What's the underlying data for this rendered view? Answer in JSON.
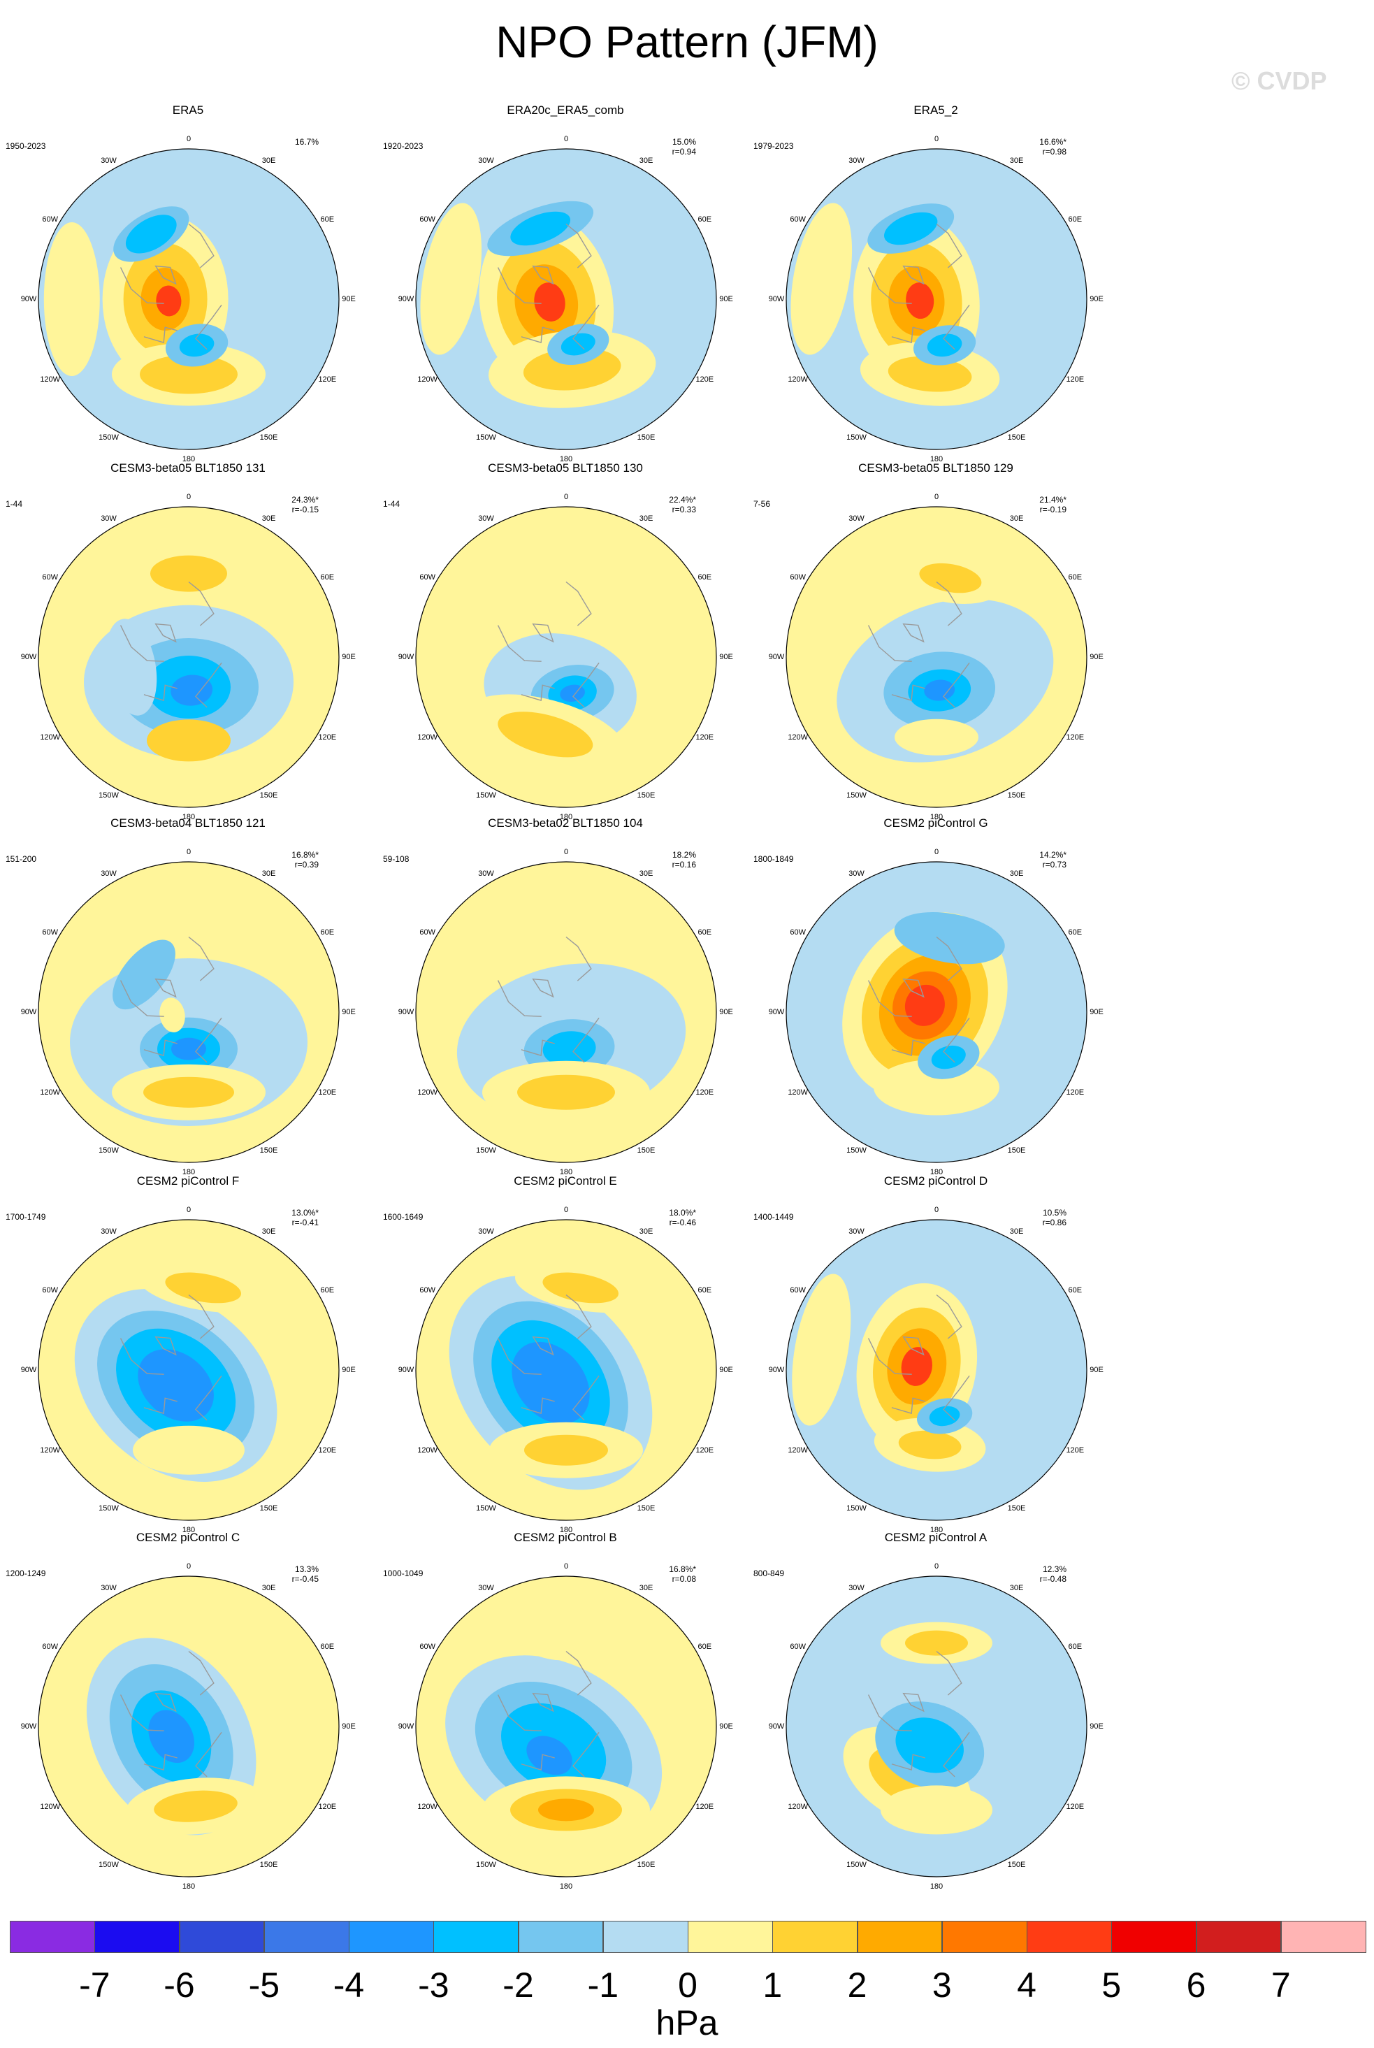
{
  "title": "NPO Pattern (JFM)",
  "watermark": "© CVDP",
  "lon_labels": [
    "180",
    "150E",
    "120E",
    "90E",
    "60E",
    "30E",
    "0",
    "30W",
    "60W",
    "90W",
    "120W",
    "150W"
  ],
  "palette": {
    "-7": "#8a2be2",
    "-6": "#1b0cf0",
    "-5": "#2f4ad9",
    "-4": "#3b78e8",
    "-3": "#1e96ff",
    "-2": "#00c0ff",
    "-1": "#75c6ef",
    "0": "#b4dcf2",
    "1": "#fff59a",
    "2": "#ffd233",
    "3": "#ffaa00",
    "4": "#ff7800",
    "5": "#ff3c14",
    "6": "#f00000",
    "7": "#d21e1e",
    "8": "#ffb4b4",
    "land": "#9a9a9a"
  },
  "panels": [
    {
      "name": "ERA5",
      "years": "1950-2023",
      "pct": "16.7%",
      "r": "",
      "bg": "#b4dcf2",
      "blobs": [
        {
          "lat": 76,
          "lon": -90,
          "rx": 120,
          "ry": 90,
          "lvl": 1
        },
        {
          "lat": 76,
          "lon": -90,
          "rx": 80,
          "ry": 60,
          "lvl": 2
        },
        {
          "lat": 76,
          "lon": -90,
          "rx": 45,
          "ry": 35,
          "lvl": 3
        },
        {
          "lat": 78,
          "lon": -95,
          "rx": 22,
          "ry": 18,
          "lvl": 5
        },
        {
          "lat": 45,
          "lon": 180,
          "rx": 110,
          "ry": 45,
          "lvl": 1
        },
        {
          "lat": 45,
          "lon": 180,
          "rx": 70,
          "ry": 28,
          "lvl": 2
        },
        {
          "lat": 62,
          "lon": 170,
          "rx": 45,
          "ry": 30,
          "lvl": -1
        },
        {
          "lat": 62,
          "lon": 170,
          "rx": 25,
          "ry": 16,
          "lvl": -2
        },
        {
          "lat": 45,
          "lon": -30,
          "rx": 60,
          "ry": 30,
          "lvl": -1
        },
        {
          "lat": 45,
          "lon": -30,
          "rx": 40,
          "ry": 22,
          "lvl": -2
        },
        {
          "lat": 20,
          "lon": -90,
          "rx": 110,
          "ry": 40,
          "lvl": 1
        }
      ]
    },
    {
      "name": "ERA20c_ERA5_comb",
      "years": "1920-2023",
      "pct": "15.0%",
      "r": "r=0.94",
      "bg": "#b4dcf2",
      "blobs": [
        {
          "lat": 78,
          "lon": -100,
          "rx": 130,
          "ry": 95,
          "lvl": 1
        },
        {
          "lat": 78,
          "lon": -100,
          "rx": 90,
          "ry": 70,
          "lvl": 2
        },
        {
          "lat": 78,
          "lon": -100,
          "rx": 55,
          "ry": 45,
          "lvl": 3
        },
        {
          "lat": 80,
          "lon": -100,
          "rx": 28,
          "ry": 22,
          "lvl": 5
        },
        {
          "lat": 48,
          "lon": 175,
          "rx": 120,
          "ry": 55,
          "lvl": 1
        },
        {
          "lat": 48,
          "lon": 175,
          "rx": 70,
          "ry": 30,
          "lvl": 2
        },
        {
          "lat": 62,
          "lon": 165,
          "rx": 45,
          "ry": 28,
          "lvl": -1
        },
        {
          "lat": 62,
          "lon": 165,
          "rx": 25,
          "ry": 15,
          "lvl": -2
        },
        {
          "lat": 45,
          "lon": -20,
          "rx": 80,
          "ry": 30,
          "lvl": -1
        },
        {
          "lat": 45,
          "lon": -20,
          "rx": 45,
          "ry": 20,
          "lvl": -2
        },
        {
          "lat": 20,
          "lon": -80,
          "rx": 110,
          "ry": 40,
          "lvl": 1
        }
      ]
    },
    {
      "name": "ERA5_2",
      "years": "1979-2023",
      "pct": "16.6%*",
      "r": "r=0.98",
      "bg": "#b4dcf2",
      "blobs": [
        {
          "lat": 78,
          "lon": -95,
          "rx": 125,
          "ry": 90,
          "lvl": 1
        },
        {
          "lat": 78,
          "lon": -95,
          "rx": 85,
          "ry": 65,
          "lvl": 2
        },
        {
          "lat": 78,
          "lon": -95,
          "rx": 50,
          "ry": 40,
          "lvl": 3
        },
        {
          "lat": 80,
          "lon": -95,
          "rx": 26,
          "ry": 20,
          "lvl": 5
        },
        {
          "lat": 45,
          "lon": -175,
          "rx": 100,
          "ry": 45,
          "lvl": 1
        },
        {
          "lat": 45,
          "lon": -175,
          "rx": 60,
          "ry": 25,
          "lvl": 2
        },
        {
          "lat": 62,
          "lon": 170,
          "rx": 45,
          "ry": 28,
          "lvl": -1
        },
        {
          "lat": 62,
          "lon": 170,
          "rx": 25,
          "ry": 16,
          "lvl": -2
        },
        {
          "lat": 45,
          "lon": -20,
          "rx": 65,
          "ry": 30,
          "lvl": -1
        },
        {
          "lat": 45,
          "lon": -20,
          "rx": 40,
          "ry": 20,
          "lvl": -2
        },
        {
          "lat": 20,
          "lon": -80,
          "rx": 110,
          "ry": 40,
          "lvl": 1
        }
      ]
    },
    {
      "name": "CESM3-beta05 BLT1850 131",
      "years": "1-44",
      "pct": "24.3%*",
      "r": "r=-0.15",
      "bg": "#fff59a",
      "blobs": [
        {
          "lat": 75,
          "lon": 180,
          "rx": 150,
          "ry": 110,
          "lvl": 0
        },
        {
          "lat": 72,
          "lon": 180,
          "rx": 100,
          "ry": 70,
          "lvl": -1
        },
        {
          "lat": 72,
          "lon": 180,
          "rx": 60,
          "ry": 45,
          "lvl": -2
        },
        {
          "lat": 70,
          "lon": 175,
          "rx": 30,
          "ry": 22,
          "lvl": -3
        },
        {
          "lat": 40,
          "lon": 180,
          "rx": 60,
          "ry": 30,
          "lvl": 2
        },
        {
          "lat": 40,
          "lon": 0,
          "rx": 90,
          "ry": 40,
          "lvl": 1
        },
        {
          "lat": 40,
          "lon": 0,
          "rx": 55,
          "ry": 26,
          "lvl": 2
        },
        {
          "lat": 55,
          "lon": -100,
          "rx": 70,
          "ry": 35,
          "lvl": 0
        }
      ]
    },
    {
      "name": "CESM3-beta05 BLT1850 130",
      "years": "1-44",
      "pct": "22.4%*",
      "r": "r=0.33",
      "bg": "#fff59a",
      "blobs": [
        {
          "lat": 70,
          "lon": -170,
          "rx": 110,
          "ry": 80,
          "lvl": 0
        },
        {
          "lat": 68,
          "lon": 170,
          "rx": 60,
          "ry": 40,
          "lvl": -1
        },
        {
          "lat": 68,
          "lon": 170,
          "rx": 35,
          "ry": 25,
          "lvl": -2
        },
        {
          "lat": 68,
          "lon": 170,
          "rx": 18,
          "ry": 12,
          "lvl": -3
        },
        {
          "lat": 42,
          "lon": -165,
          "rx": 120,
          "ry": 50,
          "lvl": 1
        },
        {
          "lat": 42,
          "lon": -165,
          "rx": 70,
          "ry": 28,
          "lvl": 2
        },
        {
          "lat": 40,
          "lon": 20,
          "rx": 60,
          "ry": 25,
          "lvl": 1
        }
      ]
    },
    {
      "name": "CESM3-beta05 BLT1850 129",
      "years": "7-56",
      "pct": "21.4%*",
      "r": "r=-0.19",
      "bg": "#fff59a",
      "blobs": [
        {
          "lat": 75,
          "lon": 160,
          "rx": 160,
          "ry": 110,
          "lvl": 0
        },
        {
          "lat": 70,
          "lon": 175,
          "rx": 80,
          "ry": 55,
          "lvl": -1
        },
        {
          "lat": 70,
          "lon": 175,
          "rx": 45,
          "ry": 30,
          "lvl": -2
        },
        {
          "lat": 70,
          "lon": 175,
          "rx": 22,
          "ry": 15,
          "lvl": -3
        },
        {
          "lat": 42,
          "lon": 180,
          "rx": 60,
          "ry": 26,
          "lvl": 1
        },
        {
          "lat": 42,
          "lon": 10,
          "rx": 75,
          "ry": 35,
          "lvl": 1
        },
        {
          "lat": 42,
          "lon": 10,
          "rx": 45,
          "ry": 20,
          "lvl": 2
        }
      ]
    },
    {
      "name": "CESM3-beta04 BLT1850 121",
      "years": "151-200",
      "pct": "16.8%*",
      "r": "r=0.39",
      "bg": "#fff59a",
      "blobs": [
        {
          "lat": 72,
          "lon": 180,
          "rx": 170,
          "ry": 120,
          "lvl": 0
        },
        {
          "lat": 68,
          "lon": 180,
          "rx": 70,
          "ry": 45,
          "lvl": -1
        },
        {
          "lat": 68,
          "lon": 180,
          "rx": 45,
          "ry": 30,
          "lvl": -2
        },
        {
          "lat": 68,
          "lon": 180,
          "rx": 25,
          "ry": 16,
          "lvl": -3
        },
        {
          "lat": 42,
          "lon": 180,
          "rx": 110,
          "ry": 40,
          "lvl": 1
        },
        {
          "lat": 42,
          "lon": 180,
          "rx": 65,
          "ry": 22,
          "lvl": 2
        },
        {
          "lat": 80,
          "lon": -100,
          "rx": 25,
          "ry": 18,
          "lvl": 1
        },
        {
          "lat": 55,
          "lon": -50,
          "rx": 60,
          "ry": 30,
          "lvl": -1
        }
      ]
    },
    {
      "name": "CESM3-beta02 BLT1850 104",
      "years": "59-108",
      "pct": "18.2%",
      "r": "r=0.16",
      "bg": "#fff59a",
      "blobs": [
        {
          "lat": 72,
          "lon": 170,
          "rx": 165,
          "ry": 110,
          "lvl": 0
        },
        {
          "lat": 68,
          "lon": 175,
          "rx": 65,
          "ry": 42,
          "lvl": -1
        },
        {
          "lat": 68,
          "lon": 175,
          "rx": 38,
          "ry": 25,
          "lvl": -2
        },
        {
          "lat": 42,
          "lon": 180,
          "rx": 120,
          "ry": 45,
          "lvl": 1
        },
        {
          "lat": 42,
          "lon": 180,
          "rx": 70,
          "ry": 25,
          "lvl": 2
        }
      ]
    },
    {
      "name": "CESM2 piControl G",
      "years": "1800-1849",
      "pct": "14.2%*",
      "r": "r=0.73",
      "bg": "#b4dcf2",
      "blobs": [
        {
          "lat": 82,
          "lon": -60,
          "rx": 140,
          "ry": 110,
          "lvl": 1
        },
        {
          "lat": 82,
          "lon": -60,
          "rx": 105,
          "ry": 85,
          "lvl": 2
        },
        {
          "lat": 82,
          "lon": -60,
          "rx": 75,
          "ry": 62,
          "lvl": 3
        },
        {
          "lat": 82,
          "lon": -60,
          "rx": 50,
          "ry": 45,
          "lvl": 4
        },
        {
          "lat": 82,
          "lon": -60,
          "rx": 30,
          "ry": 28,
          "lvl": 5
        },
        {
          "lat": 45,
          "lon": 180,
          "rx": 90,
          "ry": 40,
          "lvl": 1
        },
        {
          "lat": 62,
          "lon": 165,
          "rx": 45,
          "ry": 30,
          "lvl": -1
        },
        {
          "lat": 62,
          "lon": 165,
          "rx": 25,
          "ry": 16,
          "lvl": -2
        },
        {
          "lat": 45,
          "lon": 10,
          "rx": 80,
          "ry": 35,
          "lvl": -1
        }
      ]
    },
    {
      "name": "CESM2 piControl F",
      "years": "1700-1749",
      "pct": "13.0%*",
      "r": "r=-0.41",
      "bg": "#fff59a",
      "blobs": [
        {
          "lat": 78,
          "lon": -140,
          "rx": 160,
          "ry": 120,
          "lvl": 0
        },
        {
          "lat": 78,
          "lon": -140,
          "rx": 125,
          "ry": 92,
          "lvl": -1
        },
        {
          "lat": 78,
          "lon": -140,
          "rx": 95,
          "ry": 70,
          "lvl": -2
        },
        {
          "lat": 78,
          "lon": -140,
          "rx": 60,
          "ry": 45,
          "lvl": -3
        },
        {
          "lat": 42,
          "lon": 180,
          "rx": 80,
          "ry": 35,
          "lvl": 1
        },
        {
          "lat": 40,
          "lon": 10,
          "rx": 95,
          "ry": 32,
          "lvl": 1
        },
        {
          "lat": 40,
          "lon": 10,
          "rx": 55,
          "ry": 20,
          "lvl": 2
        }
      ]
    },
    {
      "name": "CESM2 piControl E",
      "years": "1600-1649",
      "pct": "18.0%*",
      "r": "r=-0.46",
      "bg": "#fff59a",
      "blobs": [
        {
          "lat": 78,
          "lon": -130,
          "rx": 170,
          "ry": 125,
          "lvl": 0
        },
        {
          "lat": 78,
          "lon": -130,
          "rx": 130,
          "ry": 95,
          "lvl": -1
        },
        {
          "lat": 78,
          "lon": -130,
          "rx": 100,
          "ry": 72,
          "lvl": -2
        },
        {
          "lat": 78,
          "lon": -130,
          "rx": 65,
          "ry": 48,
          "lvl": -3
        },
        {
          "lat": 42,
          "lon": 180,
          "rx": 110,
          "ry": 40,
          "lvl": 1
        },
        {
          "lat": 42,
          "lon": 180,
          "rx": 60,
          "ry": 22,
          "lvl": 2
        },
        {
          "lat": 40,
          "lon": 10,
          "rx": 95,
          "ry": 32,
          "lvl": 1
        },
        {
          "lat": 40,
          "lon": 10,
          "rx": 55,
          "ry": 20,
          "lvl": 2
        }
      ]
    },
    {
      "name": "CESM2 piControl D",
      "years": "1400-1449",
      "pct": "10.5%",
      "r": "r=0.86",
      "bg": "#b4dcf2",
      "blobs": [
        {
          "lat": 78,
          "lon": -80,
          "rx": 120,
          "ry": 85,
          "lvl": 1
        },
        {
          "lat": 78,
          "lon": -80,
          "rx": 85,
          "ry": 62,
          "lvl": 2
        },
        {
          "lat": 78,
          "lon": -80,
          "rx": 55,
          "ry": 42,
          "lvl": 3
        },
        {
          "lat": 78,
          "lon": -80,
          "rx": 28,
          "ry": 22,
          "lvl": 5
        },
        {
          "lat": 45,
          "lon": -175,
          "rx": 80,
          "ry": 38,
          "lvl": 1
        },
        {
          "lat": 45,
          "lon": -175,
          "rx": 45,
          "ry": 20,
          "lvl": 2
        },
        {
          "lat": 62,
          "lon": 170,
          "rx": 40,
          "ry": 25,
          "lvl": -1
        },
        {
          "lat": 62,
          "lon": 170,
          "rx": 22,
          "ry": 14,
          "lvl": -2
        },
        {
          "lat": 20,
          "lon": -80,
          "rx": 110,
          "ry": 38,
          "lvl": 1
        }
      ]
    },
    {
      "name": "CESM2 piControl C",
      "years": "1200-1249",
      "pct": "13.3%",
      "r": "r=-0.45",
      "bg": "#fff59a",
      "blobs": [
        {
          "lat": 78,
          "lon": -120,
          "rx": 150,
          "ry": 110,
          "lvl": 0
        },
        {
          "lat": 78,
          "lon": -120,
          "rx": 110,
          "ry": 80,
          "lvl": -1
        },
        {
          "lat": 78,
          "lon": -120,
          "rx": 70,
          "ry": 52,
          "lvl": -2
        },
        {
          "lat": 78,
          "lon": -120,
          "rx": 40,
          "ry": 30,
          "lvl": -3
        },
        {
          "lat": 42,
          "lon": 175,
          "rx": 100,
          "ry": 40,
          "lvl": 1
        },
        {
          "lat": 42,
          "lon": 175,
          "rx": 60,
          "ry": 22,
          "lvl": 2
        }
      ]
    },
    {
      "name": "CESM2 piControl B",
      "years": "1000-1049",
      "pct": "16.8%*",
      "r": "r=0.08",
      "bg": "#fff59a",
      "blobs": [
        {
          "lat": 75,
          "lon": -150,
          "rx": 165,
          "ry": 120,
          "lvl": 0
        },
        {
          "lat": 75,
          "lon": -150,
          "rx": 120,
          "ry": 85,
          "lvl": -1
        },
        {
          "lat": 75,
          "lon": -150,
          "rx": 80,
          "ry": 58,
          "lvl": -2
        },
        {
          "lat": 70,
          "lon": -150,
          "rx": 35,
          "ry": 25,
          "lvl": -3
        },
        {
          "lat": 40,
          "lon": 180,
          "rx": 120,
          "ry": 48,
          "lvl": 1
        },
        {
          "lat": 40,
          "lon": 180,
          "rx": 80,
          "ry": 30,
          "lvl": 2
        },
        {
          "lat": 40,
          "lon": 180,
          "rx": 40,
          "ry": 16,
          "lvl": 3
        },
        {
          "lat": 40,
          "lon": 0,
          "rx": 60,
          "ry": 25,
          "lvl": 1
        }
      ]
    },
    {
      "name": "CESM2 piControl A",
      "years": "800-849",
      "pct": "12.3%",
      "r": "r=-0.48",
      "bg": "#b4dcf2",
      "blobs": [
        {
          "lat": 55,
          "lon": -150,
          "rx": 100,
          "ry": 60,
          "lvl": 1
        },
        {
          "lat": 55,
          "lon": -150,
          "rx": 60,
          "ry": 35,
          "lvl": 2
        },
        {
          "lat": 78,
          "lon": -160,
          "rx": 80,
          "ry": 60,
          "lvl": -1
        },
        {
          "lat": 78,
          "lon": -160,
          "rx": 50,
          "ry": 38,
          "lvl": -2
        },
        {
          "lat": 40,
          "lon": 0,
          "rx": 80,
          "ry": 30,
          "lvl": 1
        },
        {
          "lat": 40,
          "lon": 0,
          "rx": 45,
          "ry": 18,
          "lvl": 2
        },
        {
          "lat": 40,
          "lon": 180,
          "rx": 80,
          "ry": 35,
          "lvl": 1
        }
      ]
    }
  ],
  "colorbar": {
    "units": "hPa",
    "levels": [
      "-7",
      "-6",
      "-5",
      "-4",
      "-3",
      "-2",
      "-1",
      "0",
      "1",
      "2",
      "3",
      "4",
      "5",
      "6",
      "7"
    ],
    "colors": [
      "#8a2be2",
      "#1b0cf0",
      "#2f4ad9",
      "#3b78e8",
      "#1e96ff",
      "#00c0ff",
      "#75c6ef",
      "#b4dcf2",
      "#fff59a",
      "#ffd233",
      "#ffaa00",
      "#ff7800",
      "#ff3c14",
      "#f00000",
      "#d21e1e",
      "#ffb4b4"
    ]
  }
}
